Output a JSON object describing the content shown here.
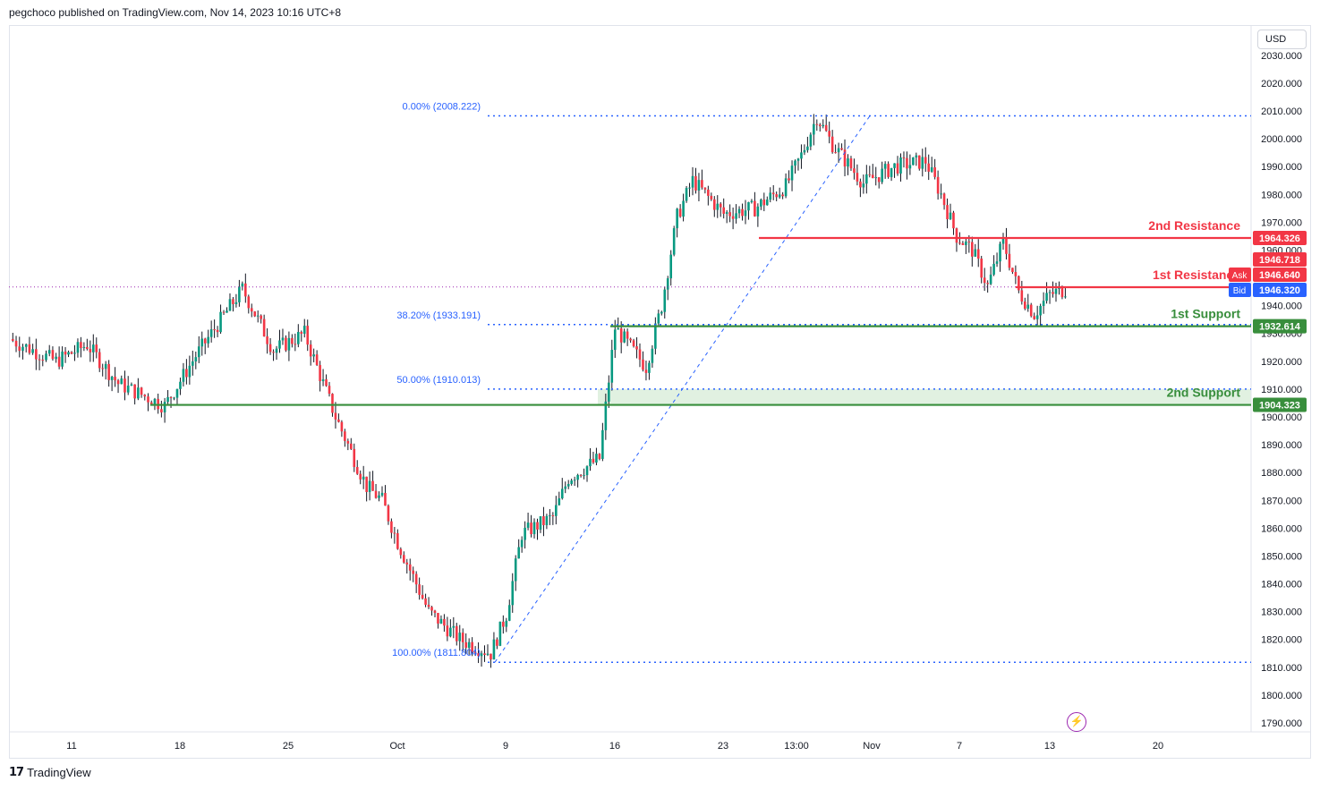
{
  "header": {
    "publish_line": "pegchoco published on TradingView.com, Nov 14, 2023 10:16 UTC+8"
  },
  "currency_label": "USD",
  "footer": {
    "brand": "TradingView",
    "logo_icon": "tradingview-logo-icon"
  },
  "colors": {
    "up": "#089981",
    "down": "#f23645",
    "resistance": "#f23645",
    "support": "#388e3c",
    "fib": "#2962ff",
    "bid": "#2962ff",
    "support_zone": "#c8e6c9"
  },
  "chart_data": {
    "type": "candlestick",
    "title": "",
    "ylim": [
      1785,
      2035
    ],
    "y_ticks": [
      "2030.000",
      "2020.000",
      "2010.000",
      "2000.000",
      "1990.000",
      "1980.000",
      "1970.000",
      "1960.000",
      "1950.000",
      "1940.000",
      "1930.000",
      "1920.000",
      "1910.000",
      "1900.000",
      "1890.000",
      "1880.000",
      "1870.000",
      "1860.000",
      "1850.000",
      "1840.000",
      "1830.000",
      "1820.000",
      "1810.000",
      "1800.000",
      "1790.000"
    ],
    "x_ticks": [
      "11",
      "18",
      "25",
      "Oct",
      "9",
      "16",
      "23",
      "13:00",
      "Nov",
      "7",
      "13",
      "20"
    ],
    "price_path": [
      {
        "date": "Sep 7",
        "price": 1928
      },
      {
        "date": "Sep 10",
        "price": 1920
      },
      {
        "date": "Sep 12",
        "price": 1926
      },
      {
        "date": "Sep 14",
        "price": 1912
      },
      {
        "date": "Sep 17",
        "price": 1904
      },
      {
        "date": "Sep 19",
        "price": 1922
      },
      {
        "date": "Sep 21",
        "price": 1938
      },
      {
        "date": "Sep 22",
        "price": 1946
      },
      {
        "date": "Sep 24",
        "price": 1924
      },
      {
        "date": "Sep 26",
        "price": 1930
      },
      {
        "date": "Sep 28",
        "price": 1900
      },
      {
        "date": "Sep 30",
        "price": 1875
      },
      {
        "date": "Oct 1",
        "price": 1870
      },
      {
        "date": "Oct 2",
        "price": 1855
      },
      {
        "date": "Oct 4",
        "price": 1830
      },
      {
        "date": "Oct 6",
        "price": 1820
      },
      {
        "date": "Oct 8",
        "price": 1815
      },
      {
        "date": "Oct 9",
        "price": 1829
      },
      {
        "date": "Oct 10",
        "price": 1858
      },
      {
        "date": "Oct 12",
        "price": 1864
      },
      {
        "date": "Oct 13",
        "price": 1878
      },
      {
        "date": "Oct 15",
        "price": 1885
      },
      {
        "date": "Oct 16",
        "price": 1932
      },
      {
        "date": "Oct 18",
        "price": 1918
      },
      {
        "date": "Oct 19",
        "price": 1940
      },
      {
        "date": "Oct 20",
        "price": 1972
      },
      {
        "date": "Oct 21",
        "price": 1985
      },
      {
        "date": "Oct 23",
        "price": 1973
      },
      {
        "date": "Oct 25",
        "price": 1975
      },
      {
        "date": "Oct 27",
        "price": 1983
      },
      {
        "date": "Oct 28",
        "price": 1994
      },
      {
        "date": "Oct 29",
        "price": 2008
      },
      {
        "date": "Oct 30",
        "price": 1998
      },
      {
        "date": "Nov 1",
        "price": 1984
      },
      {
        "date": "Nov 3",
        "price": 1990
      },
      {
        "date": "Nov 5",
        "price": 1992
      },
      {
        "date": "Nov 6",
        "price": 1980
      },
      {
        "date": "Nov 7",
        "price": 1965
      },
      {
        "date": "Nov 8",
        "price": 1960
      },
      {
        "date": "Nov 9",
        "price": 1947
      },
      {
        "date": "Nov 10",
        "price": 1963
      },
      {
        "date": "Nov 11",
        "price": 1945
      },
      {
        "date": "Nov 12",
        "price": 1937
      },
      {
        "date": "Nov 13",
        "price": 1944
      },
      {
        "date": "Nov 14",
        "price": 1946
      }
    ],
    "horizontal_levels": [
      {
        "label": "2nd Resistance",
        "value": 1964.326,
        "badge": "1964.326",
        "kind": "resistance"
      },
      {
        "label": "1st Resistance",
        "value": 1946.64,
        "badge": "1946.640",
        "kind": "resistance"
      },
      {
        "label": "1st Support",
        "value": 1932.614,
        "badge": "1932.614",
        "kind": "support"
      },
      {
        "label": "2nd Support",
        "value": 1904.323,
        "badge": "1904.323",
        "kind": "support"
      }
    ],
    "support_zone": {
      "from": 1904.323,
      "to": 1910.013
    },
    "fibonacci": [
      {
        "label": "0.00% (2008.222)",
        "value": 2008.222
      },
      {
        "label": "38.20% (1933.191)",
        "value": 1933.191
      },
      {
        "label": "50.00% (1910.013)",
        "value": 1910.013
      },
      {
        "label": "100.00% (1811.804)",
        "value": 1811.804
      }
    ],
    "price_badges": [
      {
        "label": "",
        "value": "1964.326",
        "price": 1964.326,
        "color": "#f23645"
      },
      {
        "label": "",
        "value": "1946.718",
        "price": 1946.718,
        "color": "#f23645"
      },
      {
        "label": "Ask",
        "value": "1946.640",
        "price": 1946.64,
        "color": "#f23645"
      },
      {
        "label": "Bid",
        "value": "1946.320",
        "price": 1946.32,
        "color": "#2962ff"
      },
      {
        "label": "",
        "value": "1932.614",
        "price": 1932.614,
        "color": "#388e3c"
      },
      {
        "label": "",
        "value": "1904.323",
        "price": 1904.323,
        "color": "#388e3c"
      }
    ],
    "current_price_line": 1946.718
  }
}
